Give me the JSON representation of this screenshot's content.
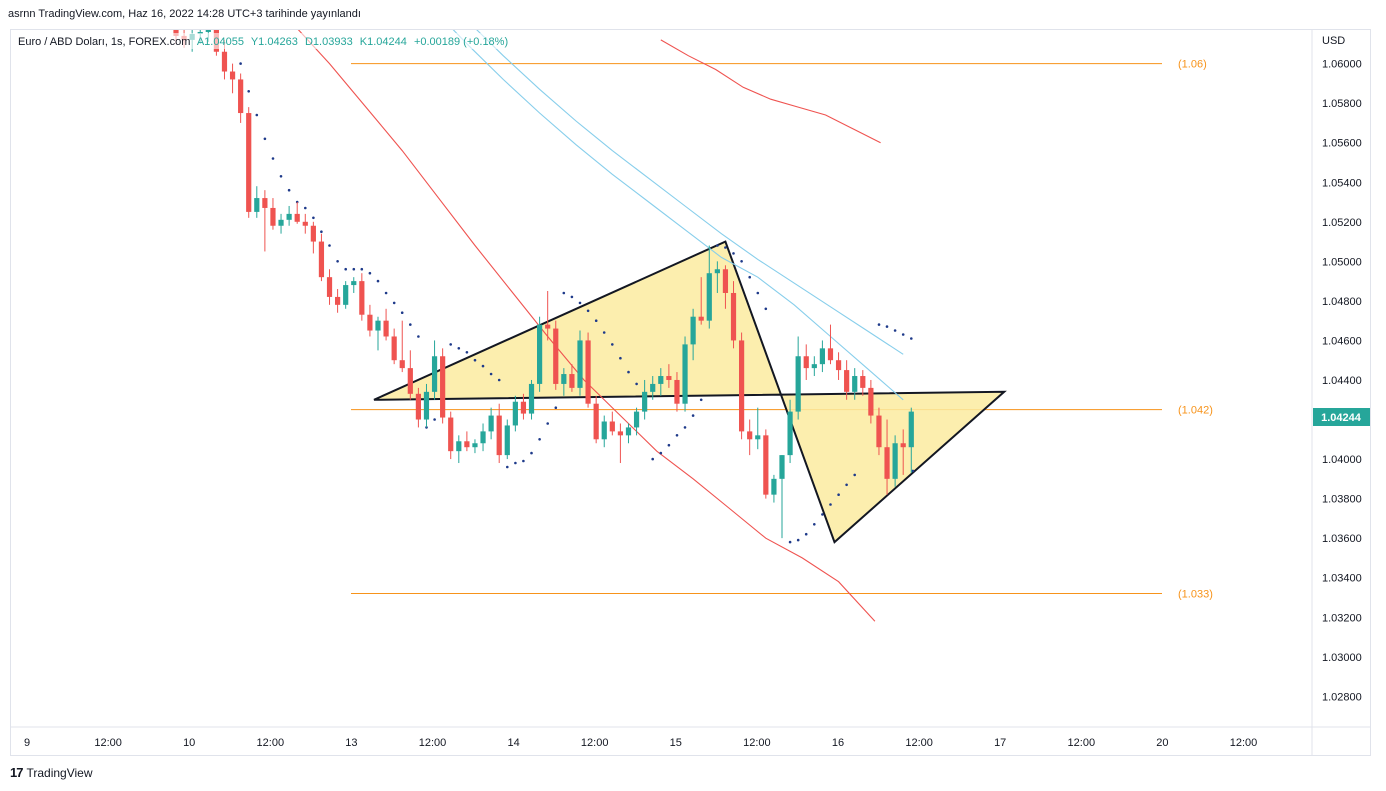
{
  "header": {
    "publish_line": "asrnn TradingView.com, Haz 16, 2022 14:28 UTC+3 tarihinde yayınlandı"
  },
  "footer": {
    "logo_mark": "17",
    "brand": "TradingView"
  },
  "chart_data": {
    "type": "candlestick",
    "symbol_line": {
      "name": "Euro / ABD Doları, 1s, FOREX.com",
      "open": "A1.04055",
      "high": "Y1.04263",
      "low": "D1.03933",
      "close": "K1.04244",
      "change": "+0.00189 (+0.18%)"
    },
    "currency_label": "USD",
    "y_ticks": [
      "1.06000",
      "1.05800",
      "1.05600",
      "1.05400",
      "1.05200",
      "1.05000",
      "1.04800",
      "1.04600",
      "1.04400",
      "1.04200",
      "1.04000",
      "1.03800",
      "1.03600",
      "1.03400",
      "1.03200",
      "1.03000",
      "1.02800"
    ],
    "ylim": [
      1.0265,
      1.0617
    ],
    "x_ticks": [
      "9",
      "12:00",
      "10",
      "12:00",
      "13",
      "12:00",
      "14",
      "12:00",
      "15",
      "12:00",
      "16",
      "12:00",
      "17",
      "12:00",
      "20",
      "12:00"
    ],
    "last_price": "1.04244",
    "horizontal_levels": [
      {
        "label": "(1.06)",
        "value": 1.06
      },
      {
        "label": "(1.042)",
        "value": 1.0425
      },
      {
        "label": "(1.033)",
        "value": 1.0332
      }
    ],
    "diamond_pattern": [
      {
        "t": 24.5,
        "p": 1.043
      },
      {
        "t": 68,
        "p": 1.051
      },
      {
        "t": 81.5,
        "p": 1.0358
      },
      {
        "t": 102.5,
        "p": 1.0434
      }
    ],
    "candles": [
      {
        "o": 1.0618,
        "h": 1.0625,
        "l": 1.061,
        "c": 1.0614
      },
      {
        "o": 1.0614,
        "h": 1.062,
        "l": 1.0608,
        "c": 1.0612
      },
      {
        "o": 1.0612,
        "h": 1.0618,
        "l": 1.0606,
        "c": 1.0615
      },
      {
        "o": 1.0615,
        "h": 1.0619,
        "l": 1.061,
        "c": 1.0616
      },
      {
        "o": 1.0616,
        "h": 1.0622,
        "l": 1.0611,
        "c": 1.062
      },
      {
        "o": 1.062,
        "h": 1.0622,
        "l": 1.0604,
        "c": 1.0606
      },
      {
        "o": 1.0606,
        "h": 1.0612,
        "l": 1.0592,
        "c": 1.0596
      },
      {
        "o": 1.0596,
        "h": 1.06,
        "l": 1.0585,
        "c": 1.0592
      },
      {
        "o": 1.0592,
        "h": 1.0595,
        "l": 1.057,
        "c": 1.0575
      },
      {
        "o": 1.0575,
        "h": 1.0578,
        "l": 1.0522,
        "c": 1.0525
      },
      {
        "o": 1.0525,
        "h": 1.0538,
        "l": 1.0522,
        "c": 1.0532
      },
      {
        "o": 1.0532,
        "h": 1.0536,
        "l": 1.0505,
        "c": 1.0527
      },
      {
        "o": 1.0527,
        "h": 1.0532,
        "l": 1.0516,
        "c": 1.0518
      },
      {
        "o": 1.0518,
        "h": 1.0524,
        "l": 1.0514,
        "c": 1.0521
      },
      {
        "o": 1.0521,
        "h": 1.0528,
        "l": 1.0518,
        "c": 1.0524
      },
      {
        "o": 1.0524,
        "h": 1.053,
        "l": 1.0519,
        "c": 1.052
      },
      {
        "o": 1.052,
        "h": 1.0524,
        "l": 1.0514,
        "c": 1.0518
      },
      {
        "o": 1.0518,
        "h": 1.052,
        "l": 1.0504,
        "c": 1.051
      },
      {
        "o": 1.051,
        "h": 1.0514,
        "l": 1.049,
        "c": 1.0492
      },
      {
        "o": 1.0492,
        "h": 1.0496,
        "l": 1.0478,
        "c": 1.0482
      },
      {
        "o": 1.0482,
        "h": 1.0486,
        "l": 1.0474,
        "c": 1.0478
      },
      {
        "o": 1.0478,
        "h": 1.049,
        "l": 1.0476,
        "c": 1.0488
      },
      {
        "o": 1.0488,
        "h": 1.0492,
        "l": 1.0484,
        "c": 1.049
      },
      {
        "o": 1.049,
        "h": 1.0494,
        "l": 1.047,
        "c": 1.0473
      },
      {
        "o": 1.0473,
        "h": 1.0478,
        "l": 1.0462,
        "c": 1.0465
      },
      {
        "o": 1.0465,
        "h": 1.0472,
        "l": 1.0455,
        "c": 1.047
      },
      {
        "o": 1.047,
        "h": 1.0476,
        "l": 1.046,
        "c": 1.0462
      },
      {
        "o": 1.0462,
        "h": 1.0466,
        "l": 1.0448,
        "c": 1.045
      },
      {
        "o": 1.045,
        "h": 1.047,
        "l": 1.0444,
        "c": 1.0446
      },
      {
        "o": 1.0446,
        "h": 1.0455,
        "l": 1.043,
        "c": 1.0433
      },
      {
        "o": 1.0433,
        "h": 1.0436,
        "l": 1.0416,
        "c": 1.042
      },
      {
        "o": 1.042,
        "h": 1.0438,
        "l": 1.0416,
        "c": 1.0434
      },
      {
        "o": 1.0434,
        "h": 1.046,
        "l": 1.043,
        "c": 1.0452
      },
      {
        "o": 1.0452,
        "h": 1.0456,
        "l": 1.0418,
        "c": 1.0421
      },
      {
        "o": 1.0421,
        "h": 1.0424,
        "l": 1.04,
        "c": 1.0404
      },
      {
        "o": 1.0404,
        "h": 1.0412,
        "l": 1.0398,
        "c": 1.0409
      },
      {
        "o": 1.0409,
        "h": 1.0414,
        "l": 1.0404,
        "c": 1.0406
      },
      {
        "o": 1.0406,
        "h": 1.041,
        "l": 1.0403,
        "c": 1.0408
      },
      {
        "o": 1.0408,
        "h": 1.0418,
        "l": 1.0404,
        "c": 1.0414
      },
      {
        "o": 1.0414,
        "h": 1.0426,
        "l": 1.041,
        "c": 1.0422
      },
      {
        "o": 1.0422,
        "h": 1.0428,
        "l": 1.0398,
        "c": 1.0402
      },
      {
        "o": 1.0402,
        "h": 1.042,
        "l": 1.04,
        "c": 1.0417
      },
      {
        "o": 1.0417,
        "h": 1.0432,
        "l": 1.0414,
        "c": 1.0429
      },
      {
        "o": 1.0429,
        "h": 1.0433,
        "l": 1.042,
        "c": 1.0423
      },
      {
        "o": 1.0423,
        "h": 1.044,
        "l": 1.042,
        "c": 1.0438
      },
      {
        "o": 1.0438,
        "h": 1.0472,
        "l": 1.0434,
        "c": 1.0468
      },
      {
        "o": 1.0468,
        "h": 1.0485,
        "l": 1.046,
        "c": 1.0466
      },
      {
        "o": 1.0466,
        "h": 1.047,
        "l": 1.0435,
        "c": 1.0438
      },
      {
        "o": 1.0438,
        "h": 1.0446,
        "l": 1.0432,
        "c": 1.0443
      },
      {
        "o": 1.0443,
        "h": 1.0448,
        "l": 1.0434,
        "c": 1.0436
      },
      {
        "o": 1.0436,
        "h": 1.0465,
        "l": 1.0432,
        "c": 1.046
      },
      {
        "o": 1.046,
        "h": 1.0464,
        "l": 1.0426,
        "c": 1.0428
      },
      {
        "o": 1.0428,
        "h": 1.0432,
        "l": 1.0408,
        "c": 1.041
      },
      {
        "o": 1.041,
        "h": 1.0422,
        "l": 1.0406,
        "c": 1.0419
      },
      {
        "o": 1.0419,
        "h": 1.0424,
        "l": 1.0412,
        "c": 1.0414
      },
      {
        "o": 1.0414,
        "h": 1.0418,
        "l": 1.0398,
        "c": 1.0412
      },
      {
        "o": 1.0412,
        "h": 1.0418,
        "l": 1.0408,
        "c": 1.0416
      },
      {
        "o": 1.0416,
        "h": 1.0426,
        "l": 1.0412,
        "c": 1.0424
      },
      {
        "o": 1.0424,
        "h": 1.044,
        "l": 1.042,
        "c": 1.0434
      },
      {
        "o": 1.0434,
        "h": 1.0442,
        "l": 1.043,
        "c": 1.0438
      },
      {
        "o": 1.0438,
        "h": 1.0446,
        "l": 1.0432,
        "c": 1.0442
      },
      {
        "o": 1.0442,
        "h": 1.0448,
        "l": 1.0436,
        "c": 1.044
      },
      {
        "o": 1.044,
        "h": 1.0444,
        "l": 1.0424,
        "c": 1.0428
      },
      {
        "o": 1.0428,
        "h": 1.0462,
        "l": 1.0424,
        "c": 1.0458
      },
      {
        "o": 1.0458,
        "h": 1.0476,
        "l": 1.045,
        "c": 1.0472
      },
      {
        "o": 1.0472,
        "h": 1.0492,
        "l": 1.0468,
        "c": 1.047
      },
      {
        "o": 1.047,
        "h": 1.0508,
        "l": 1.0466,
        "c": 1.0494
      },
      {
        "o": 1.0494,
        "h": 1.05,
        "l": 1.0484,
        "c": 1.0496
      },
      {
        "o": 1.0496,
        "h": 1.0498,
        "l": 1.0476,
        "c": 1.0484
      },
      {
        "o": 1.0484,
        "h": 1.049,
        "l": 1.0456,
        "c": 1.046
      },
      {
        "o": 1.046,
        "h": 1.0464,
        "l": 1.041,
        "c": 1.0414
      },
      {
        "o": 1.0414,
        "h": 1.042,
        "l": 1.0402,
        "c": 1.041
      },
      {
        "o": 1.041,
        "h": 1.0426,
        "l": 1.0405,
        "c": 1.0412
      },
      {
        "o": 1.0412,
        "h": 1.0415,
        "l": 1.038,
        "c": 1.0382
      },
      {
        "o": 1.0382,
        "h": 1.0392,
        "l": 1.0378,
        "c": 1.039
      },
      {
        "o": 1.039,
        "h": 1.0402,
        "l": 1.036,
        "c": 1.0402
      },
      {
        "o": 1.0402,
        "h": 1.043,
        "l": 1.0398,
        "c": 1.0424
      },
      {
        "o": 1.0424,
        "h": 1.0462,
        "l": 1.042,
        "c": 1.0452
      },
      {
        "o": 1.0452,
        "h": 1.0458,
        "l": 1.044,
        "c": 1.0446
      },
      {
        "o": 1.0446,
        "h": 1.0452,
        "l": 1.0442,
        "c": 1.0448
      },
      {
        "o": 1.0448,
        "h": 1.046,
        "l": 1.0444,
        "c": 1.0456
      },
      {
        "o": 1.0456,
        "h": 1.0468,
        "l": 1.0448,
        "c": 1.045
      },
      {
        "o": 1.045,
        "h": 1.0454,
        "l": 1.044,
        "c": 1.0445
      },
      {
        "o": 1.0445,
        "h": 1.045,
        "l": 1.043,
        "c": 1.0434
      },
      {
        "o": 1.0434,
        "h": 1.0446,
        "l": 1.043,
        "c": 1.0442
      },
      {
        "o": 1.0442,
        "h": 1.0445,
        "l": 1.0432,
        "c": 1.0436
      },
      {
        "o": 1.0436,
        "h": 1.044,
        "l": 1.0418,
        "c": 1.0422
      },
      {
        "o": 1.0422,
        "h": 1.0426,
        "l": 1.0402,
        "c": 1.0406
      },
      {
        "o": 1.0406,
        "h": 1.042,
        "l": 1.0382,
        "c": 1.039
      },
      {
        "o": 1.039,
        "h": 1.0412,
        "l": 1.0386,
        "c": 1.0408
      },
      {
        "o": 1.0408,
        "h": 1.0415,
        "l": 1.0392,
        "c": 1.0406
      },
      {
        "o": 1.0406,
        "h": 1.0426,
        "l": 1.0393,
        "c": 1.0424
      }
    ],
    "moving_averages": [
      {
        "name": "ma-fast",
        "color": "#87ceeb",
        "start": 27,
        "points": [
          1.0648,
          1.0629,
          1.061,
          1.0592,
          1.0575,
          1.0559,
          1.0544,
          1.053,
          1.0516,
          1.0502,
          1.0492,
          1.0478,
          1.0462,
          1.0446,
          1.043
        ]
      },
      {
        "name": "ma-mid",
        "color": "#87ceeb",
        "start": 27,
        "points": [
          1.066,
          1.0641,
          1.0622,
          1.0604,
          1.0587,
          1.0571,
          1.0556,
          1.0542,
          1.0528,
          1.0514,
          1.0501,
          1.0489,
          1.0477,
          1.0465,
          1.0453
        ]
      },
      {
        "name": "ma-slow-red",
        "color": "#ef5350",
        "start": 10,
        "points": [
          1.064,
          1.062,
          1.06,
          1.0578,
          1.0556,
          1.0532,
          1.0508,
          1.0485,
          1.0462,
          1.044,
          1.0422,
          1.0404,
          1.039,
          1.0375,
          1.036,
          1.035,
          1.0338,
          1.0318
        ]
      },
      {
        "name": "ma-long-red",
        "color": "#ef5350",
        "start": 60,
        "points": [
          1.0612,
          1.0604,
          1.0597,
          1.0588,
          1.0582,
          1.0578,
          1.0574,
          1.0567,
          1.056
        ]
      }
    ],
    "parabolic_sar": [
      [
        8,
        1.06
      ],
      [
        9,
        1.0586
      ],
      [
        10,
        1.0574
      ],
      [
        11,
        1.0562
      ],
      [
        12,
        1.0552
      ],
      [
        13,
        1.0543
      ],
      [
        14,
        1.0536
      ],
      [
        15,
        1.053
      ],
      [
        16,
        1.0527
      ],
      [
        17,
        1.0522
      ],
      [
        18,
        1.0515
      ],
      [
        19,
        1.0508
      ],
      [
        20,
        1.05
      ],
      [
        21,
        1.0496
      ],
      [
        22,
        1.0496
      ],
      [
        23,
        1.0496
      ],
      [
        24,
        1.0494
      ],
      [
        25,
        1.049
      ],
      [
        26,
        1.0484
      ],
      [
        27,
        1.0479
      ],
      [
        28,
        1.0474
      ],
      [
        29,
        1.0468
      ],
      [
        30,
        1.0462
      ],
      [
        31,
        1.0416
      ],
      [
        32,
        1.042
      ],
      [
        33,
        1.0424
      ],
      [
        34,
        1.0458
      ],
      [
        35,
        1.0456
      ],
      [
        36,
        1.0454
      ],
      [
        37,
        1.045
      ],
      [
        38,
        1.0447
      ],
      [
        39,
        1.0443
      ],
      [
        40,
        1.044
      ],
      [
        41,
        1.0396
      ],
      [
        42,
        1.0398
      ],
      [
        43,
        1.0399
      ],
      [
        44,
        1.0403
      ],
      [
        45,
        1.041
      ],
      [
        46,
        1.0418
      ],
      [
        47,
        1.0426
      ],
      [
        48,
        1.0484
      ],
      [
        49,
        1.0482
      ],
      [
        50,
        1.0479
      ],
      [
        51,
        1.0475
      ],
      [
        52,
        1.047
      ],
      [
        53,
        1.0464
      ],
      [
        54,
        1.0458
      ],
      [
        55,
        1.0451
      ],
      [
        56,
        1.0444
      ],
      [
        57,
        1.0438
      ],
      [
        58,
        1.0432
      ],
      [
        59,
        1.04
      ],
      [
        60,
        1.0403
      ],
      [
        61,
        1.0407
      ],
      [
        62,
        1.0412
      ],
      [
        63,
        1.0416
      ],
      [
        64,
        1.0422
      ],
      [
        65,
        1.043
      ],
      [
        67,
        1.0508
      ],
      [
        68,
        1.0507
      ],
      [
        69,
        1.0504
      ],
      [
        70,
        1.05
      ],
      [
        71,
        1.0492
      ],
      [
        72,
        1.0484
      ],
      [
        73,
        1.0476
      ],
      [
        76,
        1.0358
      ],
      [
        77,
        1.0359
      ],
      [
        78,
        1.0362
      ],
      [
        79,
        1.0367
      ],
      [
        80,
        1.0372
      ],
      [
        81,
        1.0377
      ],
      [
        82,
        1.0382
      ],
      [
        83,
        1.0387
      ],
      [
        84,
        1.0392
      ],
      [
        87,
        1.0468
      ],
      [
        88,
        1.0467
      ],
      [
        89,
        1.0465
      ],
      [
        90,
        1.0463
      ],
      [
        91,
        1.0461
      ],
      [
        91.2,
        1.0394
      ]
    ]
  }
}
